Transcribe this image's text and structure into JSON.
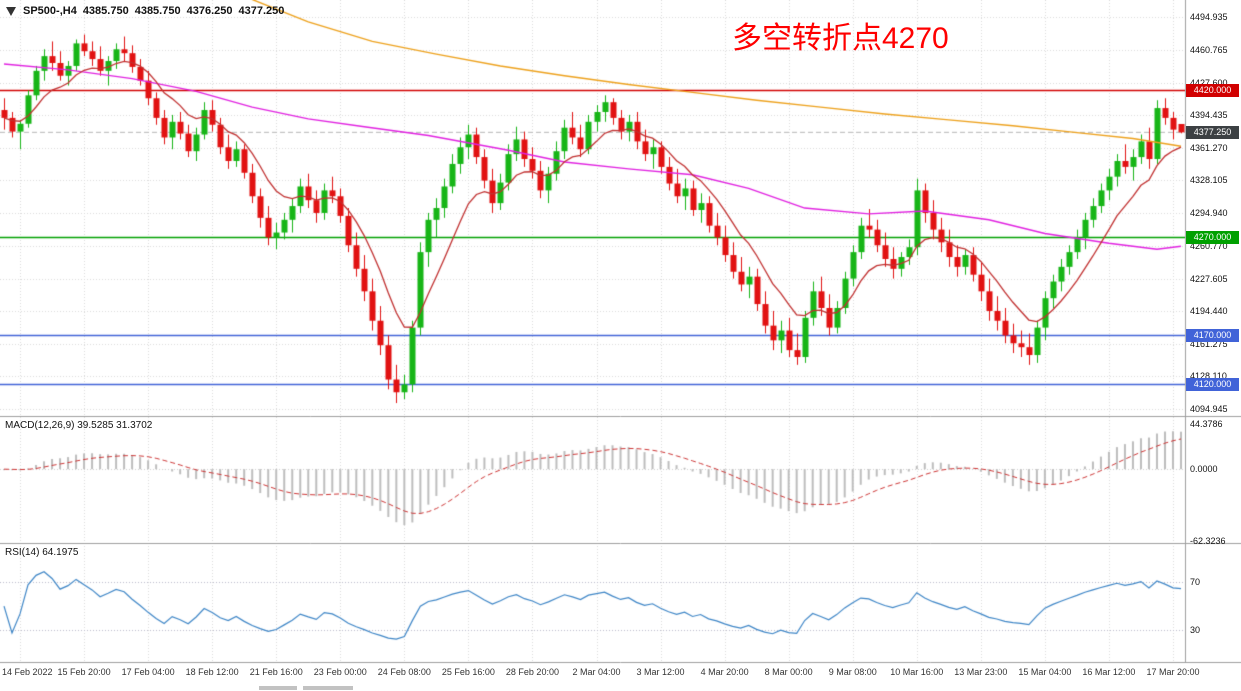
{
  "header": {
    "symbol": "SP500-,H4",
    "open": "4385.750",
    "high": "4385.750",
    "low": "4376.250",
    "close": "4377.250"
  },
  "annotation": {
    "text": "多空转折点4270",
    "color": "#ff0000"
  },
  "scrollbar": {
    "thumbs": 2
  },
  "chart_data": {
    "type": "candlestick",
    "symbol": "SP500-",
    "timeframe": "H4",
    "ylim": [
      4094.945,
      4512.0
    ],
    "y_ticks": [
      "4494.935",
      "4460.765",
      "4427.600",
      "4394.435",
      "4361.270",
      "4328.105",
      "4294.940",
      "4260.770",
      "4227.605",
      "4194.440",
      "4161.275",
      "4128.110",
      "4094.945"
    ],
    "price_badges": [
      {
        "text": "4420.000",
        "price": 4420.0,
        "bg": "#d10000"
      },
      {
        "text": "4377.250",
        "price": 4377.25,
        "bg": "#3c4043"
      },
      {
        "text": "4270.000",
        "price": 4270.0,
        "bg": "#00a000"
      },
      {
        "text": "4170.000",
        "price": 4170.0,
        "bg": "#4163d8"
      },
      {
        "text": "4120.000",
        "price": 4120.0,
        "bg": "#4163d8"
      }
    ],
    "hlines": [
      {
        "price": 4420.0,
        "color": "#d10000"
      },
      {
        "price": 4270.0,
        "color": "#00a000"
      },
      {
        "price": 4170.0,
        "color": "#4163d8"
      },
      {
        "price": 4120.0,
        "color": "#4163d8"
      }
    ],
    "x_labels": [
      {
        "i": 2,
        "t": "14 Feb 2022"
      },
      {
        "i": 10,
        "t": "15 Feb 20:00"
      },
      {
        "i": 18,
        "t": "17 Feb 04:00"
      },
      {
        "i": 26,
        "t": "18 Feb 12:00"
      },
      {
        "i": 34,
        "t": "21 Feb 16:00"
      },
      {
        "i": 42,
        "t": "23 Feb 00:00"
      },
      {
        "i": 50,
        "t": "24 Feb 08:00"
      },
      {
        "i": 58,
        "t": "25 Feb 16:00"
      },
      {
        "i": 66,
        "t": "28 Feb 20:00"
      },
      {
        "i": 74,
        "t": "2 Mar 04:00"
      },
      {
        "i": 82,
        "t": "3 Mar 12:00"
      },
      {
        "i": 90,
        "t": "4 Mar 20:00"
      },
      {
        "i": 98,
        "t": "8 Mar 00:00"
      },
      {
        "i": 106,
        "t": "9 Mar 08:00"
      },
      {
        "i": 114,
        "t": "10 Mar 16:00"
      },
      {
        "i": 122,
        "t": "13 Mar 23:00"
      },
      {
        "i": 130,
        "t": "15 Mar 04:00"
      },
      {
        "i": 138,
        "t": "16 Mar 12:00"
      },
      {
        "i": 146,
        "t": "17 Mar 20:00"
      }
    ],
    "candles": [
      [
        4400,
        4412,
        4380,
        4392
      ],
      [
        4392,
        4398,
        4372,
        4378
      ],
      [
        4378,
        4390,
        4360,
        4386
      ],
      [
        4386,
        4420,
        4382,
        4415
      ],
      [
        4415,
        4445,
        4410,
        4440
      ],
      [
        4440,
        4462,
        4430,
        4455
      ],
      [
        4455,
        4470,
        4440,
        4448
      ],
      [
        4448,
        4460,
        4430,
        4435
      ],
      [
        4435,
        4450,
        4425,
        4445
      ],
      [
        4445,
        4472,
        4440,
        4468
      ],
      [
        4468,
        4477,
        4455,
        4460
      ],
      [
        4460,
        4470,
        4445,
        4452
      ],
      [
        4452,
        4465,
        4435,
        4440
      ],
      [
        4440,
        4455,
        4425,
        4450
      ],
      [
        4450,
        4468,
        4442,
        4462
      ],
      [
        4462,
        4475,
        4450,
        4458
      ],
      [
        4458,
        4466,
        4438,
        4444
      ],
      [
        4444,
        4452,
        4425,
        4430
      ],
      [
        4430,
        4440,
        4405,
        4412
      ],
      [
        4412,
        4418,
        4385,
        4392
      ],
      [
        4392,
        4400,
        4365,
        4372
      ],
      [
        4372,
        4395,
        4360,
        4388
      ],
      [
        4388,
        4398,
        4370,
        4376
      ],
      [
        4376,
        4385,
        4352,
        4358
      ],
      [
        4358,
        4382,
        4348,
        4375
      ],
      [
        4375,
        4408,
        4370,
        4400
      ],
      [
        4400,
        4410,
        4378,
        4385
      ],
      [
        4385,
        4392,
        4355,
        4362
      ],
      [
        4362,
        4375,
        4340,
        4348
      ],
      [
        4348,
        4368,
        4342,
        4360
      ],
      [
        4360,
        4365,
        4330,
        4336
      ],
      [
        4336,
        4345,
        4305,
        4312
      ],
      [
        4312,
        4320,
        4280,
        4290
      ],
      [
        4290,
        4302,
        4262,
        4270
      ],
      [
        4270,
        4285,
        4258,
        4275
      ],
      [
        4275,
        4295,
        4268,
        4288
      ],
      [
        4288,
        4310,
        4275,
        4302
      ],
      [
        4302,
        4330,
        4295,
        4322
      ],
      [
        4322,
        4335,
        4300,
        4308
      ],
      [
        4308,
        4318,
        4285,
        4295
      ],
      [
        4295,
        4325,
        4288,
        4318
      ],
      [
        4318,
        4332,
        4305,
        4312
      ],
      [
        4312,
        4320,
        4285,
        4292
      ],
      [
        4292,
        4300,
        4255,
        4262
      ],
      [
        4262,
        4275,
        4230,
        4238
      ],
      [
        4238,
        4252,
        4205,
        4215
      ],
      [
        4215,
        4228,
        4175,
        4185
      ],
      [
        4185,
        4200,
        4150,
        4160
      ],
      [
        4160,
        4170,
        4115,
        4125
      ],
      [
        4125,
        4140,
        4101,
        4112
      ],
      [
        4112,
        4130,
        4105,
        4120
      ],
      [
        4120,
        4185,
        4112,
        4178
      ],
      [
        4178,
        4265,
        4170,
        4255
      ],
      [
        4255,
        4295,
        4240,
        4288
      ],
      [
        4288,
        4310,
        4270,
        4300
      ],
      [
        4300,
        4330,
        4290,
        4322
      ],
      [
        4322,
        4355,
        4315,
        4345
      ],
      [
        4345,
        4372,
        4335,
        4362
      ],
      [
        4362,
        4385,
        4350,
        4375
      ],
      [
        4375,
        4382,
        4345,
        4352
      ],
      [
        4352,
        4360,
        4320,
        4328
      ],
      [
        4328,
        4340,
        4295,
        4305
      ],
      [
        4305,
        4335,
        4298,
        4326
      ],
      [
        4326,
        4365,
        4318,
        4355
      ],
      [
        4355,
        4383,
        4348,
        4370
      ],
      [
        4370,
        4378,
        4342,
        4350
      ],
      [
        4350,
        4362,
        4330,
        4338
      ],
      [
        4338,
        4348,
        4310,
        4318
      ],
      [
        4318,
        4342,
        4305,
        4335
      ],
      [
        4335,
        4368,
        4328,
        4358
      ],
      [
        4358,
        4390,
        4350,
        4382
      ],
      [
        4382,
        4398,
        4365,
        4372
      ],
      [
        4372,
        4385,
        4352,
        4360
      ],
      [
        4360,
        4395,
        4355,
        4388
      ],
      [
        4388,
        4405,
        4378,
        4398
      ],
      [
        4398,
        4415,
        4388,
        4408
      ],
      [
        4408,
        4412,
        4385,
        4392
      ],
      [
        4392,
        4400,
        4370,
        4378
      ],
      [
        4378,
        4395,
        4368,
        4388
      ],
      [
        4388,
        4398,
        4360,
        4368
      ],
      [
        4368,
        4380,
        4348,
        4355
      ],
      [
        4355,
        4370,
        4340,
        4362
      ],
      [
        4362,
        4368,
        4335,
        4342
      ],
      [
        4342,
        4352,
        4318,
        4325
      ],
      [
        4325,
        4340,
        4305,
        4312
      ],
      [
        4312,
        4330,
        4298,
        4320
      ],
      [
        4320,
        4328,
        4292,
        4298
      ],
      [
        4298,
        4315,
        4285,
        4305
      ],
      [
        4305,
        4312,
        4275,
        4282
      ],
      [
        4282,
        4295,
        4262,
        4270
      ],
      [
        4270,
        4282,
        4245,
        4252
      ],
      [
        4252,
        4265,
        4228,
        4235
      ],
      [
        4235,
        4250,
        4215,
        4222
      ],
      [
        4222,
        4240,
        4208,
        4230
      ],
      [
        4230,
        4238,
        4195,
        4202
      ],
      [
        4202,
        4215,
        4172,
        4180
      ],
      [
        4180,
        4195,
        4155,
        4165
      ],
      [
        4165,
        4185,
        4152,
        4175
      ],
      [
        4175,
        4188,
        4148,
        4155
      ],
      [
        4155,
        4172,
        4140,
        4148
      ],
      [
        4148,
        4195,
        4142,
        4188
      ],
      [
        4188,
        4225,
        4180,
        4215
      ],
      [
        4215,
        4230,
        4190,
        4198
      ],
      [
        4198,
        4212,
        4170,
        4178
      ],
      [
        4178,
        4205,
        4172,
        4198
      ],
      [
        4198,
        4235,
        4192,
        4228
      ],
      [
        4228,
        4262,
        4220,
        4255
      ],
      [
        4255,
        4290,
        4248,
        4282
      ],
      [
        4282,
        4299,
        4270,
        4278
      ],
      [
        4278,
        4288,
        4255,
        4262
      ],
      [
        4262,
        4275,
        4240,
        4248
      ],
      [
        4248,
        4260,
        4228,
        4238
      ],
      [
        4238,
        4255,
        4230,
        4250
      ],
      [
        4250,
        4268,
        4242,
        4260
      ],
      [
        4260,
        4330,
        4252,
        4318
      ],
      [
        4318,
        4325,
        4285,
        4295
      ],
      [
        4295,
        4308,
        4268,
        4278
      ],
      [
        4278,
        4290,
        4255,
        4265
      ],
      [
        4265,
        4278,
        4240,
        4250
      ],
      [
        4250,
        4262,
        4230,
        4240
      ],
      [
        4240,
        4258,
        4232,
        4252
      ],
      [
        4252,
        4260,
        4225,
        4232
      ],
      [
        4232,
        4245,
        4205,
        4215
      ],
      [
        4215,
        4228,
        4185,
        4195
      ],
      [
        4195,
        4210,
        4175,
        4185
      ],
      [
        4185,
        4198,
        4162,
        4170
      ],
      [
        4170,
        4182,
        4152,
        4162
      ],
      [
        4162,
        4175,
        4148,
        4158
      ],
      [
        4158,
        4172,
        4140,
        4150
      ],
      [
        4150,
        4185,
        4142,
        4178
      ],
      [
        4178,
        4215,
        4165,
        4208
      ],
      [
        4208,
        4232,
        4198,
        4225
      ],
      [
        4225,
        4248,
        4215,
        4240
      ],
      [
        4240,
        4262,
        4232,
        4255
      ],
      [
        4255,
        4278,
        4248,
        4270
      ],
      [
        4270,
        4295,
        4258,
        4288
      ],
      [
        4288,
        4310,
        4280,
        4302
      ],
      [
        4302,
        4325,
        4295,
        4318
      ],
      [
        4318,
        4340,
        4308,
        4332
      ],
      [
        4332,
        4355,
        4322,
        4348
      ],
      [
        4348,
        4365,
        4335,
        4342
      ],
      [
        4342,
        4360,
        4328,
        4352
      ],
      [
        4352,
        4375,
        4345,
        4368
      ],
      [
        4368,
        4382,
        4340,
        4350
      ],
      [
        4350,
        4410,
        4345,
        4402
      ],
      [
        4402,
        4412,
        4385,
        4392
      ],
      [
        4392,
        4398,
        4370,
        4380
      ],
      [
        4385.75,
        4385.75,
        4376.25,
        4377.25
      ]
    ],
    "overlays": {
      "red_ma_period": 9,
      "magenta_ma": [
        [
          0,
          4447
        ],
        [
          8,
          4441
        ],
        [
          16,
          4432
        ],
        [
          24,
          4419
        ],
        [
          31,
          4403
        ],
        [
          38,
          4391
        ],
        [
          45,
          4383
        ],
        [
          53,
          4374
        ],
        [
          63,
          4359
        ],
        [
          70,
          4347
        ],
        [
          78,
          4340
        ],
        [
          86,
          4334
        ],
        [
          93,
          4320
        ],
        [
          100,
          4300
        ],
        [
          108,
          4294
        ],
        [
          115,
          4297
        ],
        [
          123,
          4288
        ],
        [
          130,
          4274
        ],
        [
          138,
          4264
        ],
        [
          144,
          4258
        ],
        [
          147,
          4261
        ]
      ],
      "orange_ma": [
        [
          30,
          4516
        ],
        [
          38,
          4490
        ],
        [
          46,
          4470
        ],
        [
          54,
          4457
        ],
        [
          62,
          4445
        ],
        [
          70,
          4435
        ],
        [
          78,
          4426
        ],
        [
          86,
          4418
        ],
        [
          94,
          4410
        ],
        [
          102,
          4403
        ],
        [
          110,
          4396
        ],
        [
          118,
          4390
        ],
        [
          126,
          4384
        ],
        [
          134,
          4377
        ],
        [
          141,
          4371
        ],
        [
          147,
          4363
        ]
      ]
    },
    "macd": {
      "label": "MACD(12,26,9) 39.5285 31.3702",
      "fast": 12,
      "slow": 26,
      "signal": 9,
      "value": 39.5285,
      "signal_value": 31.3702,
      "ylim": [
        -62.3236,
        44.3786
      ],
      "axis_labels": [
        {
          "v": 44.3786,
          "t": "44.3786"
        },
        {
          "v": 0,
          "t": "0.0000"
        },
        {
          "v": -62.3236,
          "t": "-62.3236"
        }
      ]
    },
    "rsi": {
      "label": "RSI(14) 64.1975",
      "period": 14,
      "value": 64.1975,
      "levels": [
        70,
        30
      ],
      "axis_labels": [
        {
          "v": 70,
          "t": "70"
        },
        {
          "v": 30,
          "t": "30"
        }
      ]
    },
    "colors": {
      "up": "#17b517",
      "down": "#e11212",
      "ma_red": "#c03030",
      "ma_magenta": "#e020e0",
      "ma_orange": "#eda11c",
      "macd_hist": "#bdbdbd",
      "macd_signal": "#cc3333",
      "rsi_line": "#3d85c6",
      "grid": "#d9d9d9"
    }
  }
}
